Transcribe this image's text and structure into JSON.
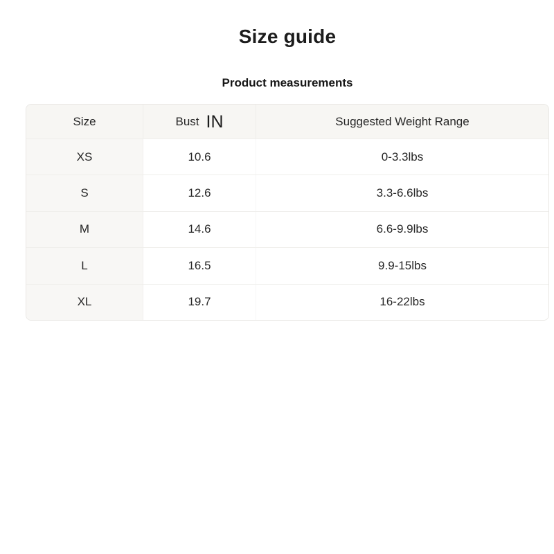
{
  "page": {
    "title": "Size guide",
    "subtitle": "Product measurements"
  },
  "table": {
    "headers": {
      "size": "Size",
      "bust": "Bust",
      "bust_unit": "IN",
      "weight": "Suggested Weight Range"
    },
    "rows": [
      {
        "size": "XS",
        "bust": "10.6",
        "weight": "0-3.3lbs"
      },
      {
        "size": "S",
        "bust": "12.6",
        "weight": "3.3-6.6lbs"
      },
      {
        "size": "M",
        "bust": "14.6",
        "weight": "6.6-9.9lbs"
      },
      {
        "size": "L",
        "bust": "16.5",
        "weight": "9.9-15lbs"
      },
      {
        "size": "XL",
        "bust": "19.7",
        "weight": "16-22lbs"
      }
    ],
    "colors": {
      "header_bg": "#f7f6f3",
      "first_col_bg": "#f8f7f5",
      "border": "#e9e7e4",
      "divider": "#efeeeb",
      "text": "#262626"
    }
  }
}
